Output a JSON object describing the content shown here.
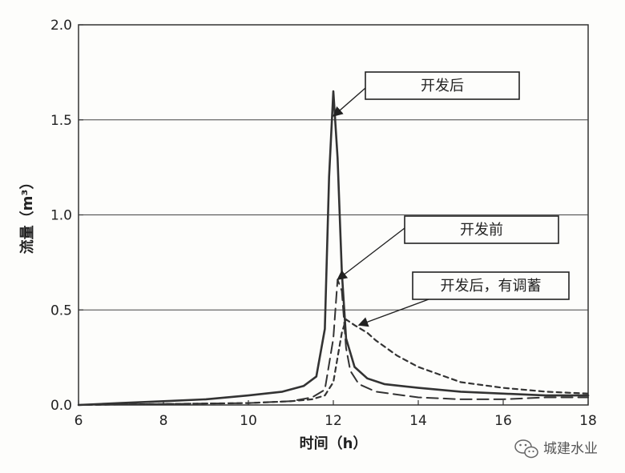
{
  "chart_data": {
    "type": "line",
    "xlabel": "时间（h）",
    "ylabel": "流量（m³）",
    "xlim": [
      6,
      18
    ],
    "ylim": [
      0.0,
      2.0
    ],
    "xticks": [
      "6",
      "8",
      "10",
      "12",
      "14",
      "16",
      "18"
    ],
    "yticks": [
      "0.0",
      "0.5",
      "1.0",
      "1.5",
      "2.0"
    ],
    "grid": "horizontal",
    "series": [
      {
        "name": "开发后",
        "style": "solid",
        "color": "#333333",
        "x": [
          6,
          7,
          8,
          9,
          10,
          10.8,
          11.3,
          11.6,
          11.8,
          11.9,
          12.0,
          12.1,
          12.2,
          12.3,
          12.5,
          12.8,
          13.2,
          14,
          15,
          16,
          17,
          18
        ],
        "y": [
          0.0,
          0.01,
          0.02,
          0.03,
          0.05,
          0.07,
          0.1,
          0.15,
          0.4,
          1.2,
          1.65,
          1.3,
          0.7,
          0.35,
          0.2,
          0.14,
          0.11,
          0.09,
          0.07,
          0.06,
          0.05,
          0.05
        ]
      },
      {
        "name": "开发前",
        "style": "long-dash",
        "color": "#333333",
        "x": [
          6,
          8,
          10,
          11,
          11.5,
          11.8,
          12.0,
          12.1,
          12.2,
          12.3,
          12.4,
          12.6,
          13.0,
          14,
          15,
          16,
          17,
          18
        ],
        "y": [
          0.0,
          0.005,
          0.01,
          0.02,
          0.04,
          0.08,
          0.35,
          0.66,
          0.6,
          0.3,
          0.18,
          0.11,
          0.07,
          0.04,
          0.03,
          0.03,
          0.04,
          0.04
        ]
      },
      {
        "name": "开发后，有调蓄",
        "style": "short-dash",
        "color": "#333333",
        "x": [
          6,
          8,
          10,
          11,
          11.5,
          11.8,
          12.0,
          12.1,
          12.2,
          12.3,
          12.5,
          12.8,
          13.0,
          13.5,
          14.0,
          14.5,
          15.0,
          16.0,
          17.0,
          18.0
        ],
        "y": [
          0.0,
          0.005,
          0.01,
          0.02,
          0.03,
          0.05,
          0.12,
          0.25,
          0.38,
          0.45,
          0.42,
          0.38,
          0.34,
          0.26,
          0.2,
          0.16,
          0.12,
          0.09,
          0.07,
          0.06
        ]
      }
    ],
    "annotations": [
      {
        "label": "开发后",
        "target_x": 12.0,
        "target_y": 1.52
      },
      {
        "label": "开发前",
        "target_x": 12.1,
        "target_y": 0.66
      },
      {
        "label": "开发后，有调蓄",
        "target_x": 12.6,
        "target_y": 0.42
      }
    ]
  },
  "watermark": {
    "text": "城建水业",
    "icon": "wechat-icon"
  }
}
